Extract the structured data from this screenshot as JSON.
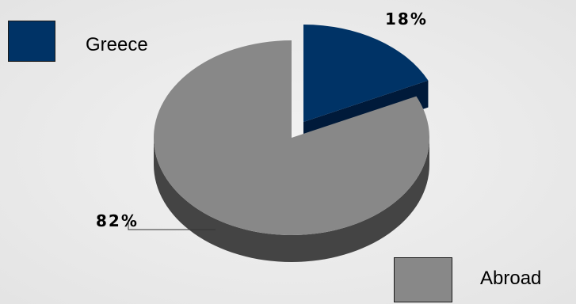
{
  "chart_data": {
    "type": "pie",
    "title": "",
    "categories": [
      "Greece",
      "Abroad"
    ],
    "values": [
      18,
      82
    ],
    "unit": "%",
    "data_labels": [
      "18%",
      "82%"
    ],
    "colors": [
      "#003366",
      "#888888"
    ],
    "side_colors": [
      "#001a3a",
      "#444444"
    ],
    "exploded": "Greece",
    "style": "3d",
    "legend": {
      "items": [
        {
          "label": "Greece",
          "color": "#003366"
        },
        {
          "label": "Abroad",
          "color": "#888888"
        }
      ]
    }
  }
}
